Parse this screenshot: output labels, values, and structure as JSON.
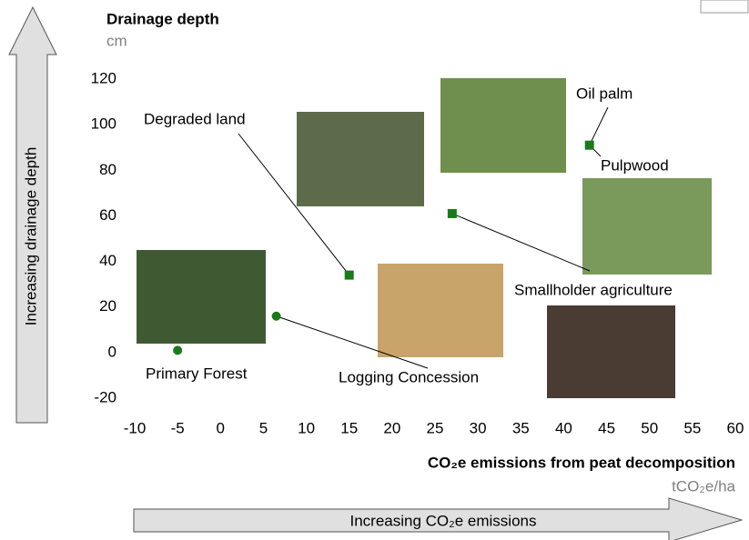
{
  "chart_data": {
    "type": "scatter",
    "title": "Drainage depth",
    "y_unit": "cm",
    "x_label": "CO₂e emissions from peat decomposition",
    "x_unit": "tCO₂e/ha",
    "y_arrow_label": "Increasing drainage depth",
    "x_arrow_label": "Increasing CO₂e emissions",
    "xlim": [
      -10,
      60
    ],
    "xticks": [
      -10,
      -5,
      0,
      5,
      10,
      15,
      20,
      25,
      30,
      35,
      40,
      45,
      50,
      55,
      60
    ],
    "ylim": [
      -20,
      120
    ],
    "yticks": [
      -20,
      0,
      20,
      40,
      60,
      80,
      100,
      120
    ],
    "color": "#1a7a1a",
    "x": [
      -5,
      6.5,
      15,
      27,
      43
    ],
    "values": [
      1,
      16,
      34,
      61,
      91
    ],
    "markers": [
      "circle",
      "circle",
      "square",
      "square",
      "square"
    ],
    "point_labels": [
      [
        "Primary Forest"
      ],
      [
        "Logging Concession"
      ],
      [
        "Degraded land"
      ],
      [
        "Smallholder agriculture"
      ],
      [
        "Oil palm",
        "Pulpwood"
      ]
    ]
  }
}
